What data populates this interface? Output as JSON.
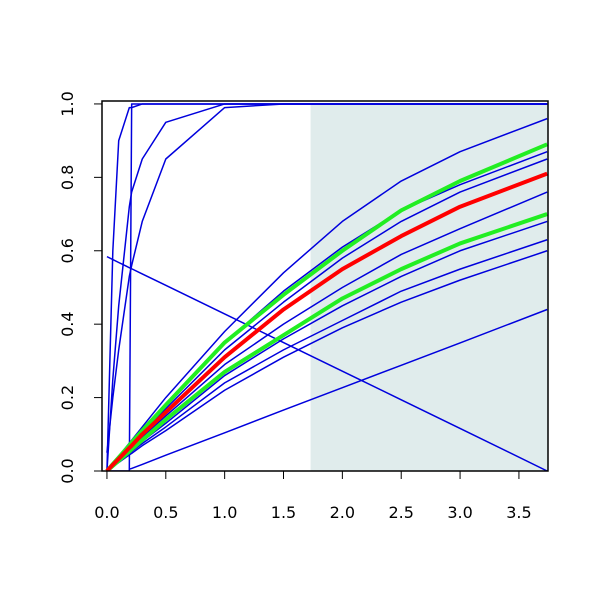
{
  "chart_data": {
    "type": "line",
    "x": [
      0,
      0.05,
      0.1,
      0.19,
      0.21,
      0.3,
      0.5,
      1,
      1.5,
      2,
      2.5,
      3,
      3.74
    ],
    "xlim": [
      -0.042,
      3.747
    ],
    "ylim": [
      0,
      1.008
    ],
    "xticks": [
      {
        "value": 0,
        "label": "0.0"
      },
      0.5,
      {
        "value": 1,
        "label": "1.0"
      },
      1.5,
      {
        "value": 2,
        "label": "2.0"
      },
      2.5,
      {
        "value": 3,
        "label": "3.0"
      },
      3.5
    ],
    "yticks": [
      {
        "value": 0,
        "label": "0.0"
      },
      0.2,
      0.4,
      0.6,
      0.8,
      {
        "value": 1,
        "label": "1.0"
      }
    ],
    "shade": {
      "x": [
        1.73,
        3.747
      ],
      "y": [
        0,
        1
      ],
      "color": "#e0ecec"
    },
    "series": [
      {
        "color": "#0000dd",
        "width": 1.5,
        "values": [
          0,
          0.02,
          0.04,
          0.076,
          0.084,
          0.12,
          0.2,
          0.38,
          0.54,
          0.68,
          0.79,
          0.87,
          0.96
        ]
      },
      {
        "color": "#0000dd",
        "width": 1.5,
        "values": [
          0,
          0.019,
          0.037,
          0.07,
          0.078,
          0.11,
          0.18,
          0.35,
          0.49,
          0.61,
          0.71,
          0.78,
          0.87
        ]
      },
      {
        "color": "#0000dd",
        "width": 1.5,
        "values": [
          0,
          0.018,
          0.035,
          0.067,
          0.074,
          0.105,
          0.17,
          0.33,
          0.46,
          0.58,
          0.68,
          0.76,
          0.85
        ]
      },
      {
        "color": "#0000dd",
        "width": 1.5,
        "values": [
          0,
          0.016,
          0.031,
          0.059,
          0.065,
          0.093,
          0.15,
          0.29,
          0.4,
          0.5,
          0.59,
          0.66,
          0.76
        ]
      },
      {
        "color": "#0000dd",
        "width": 1.5,
        "values": [
          0,
          0.014,
          0.027,
          0.051,
          0.057,
          0.081,
          0.13,
          0.26,
          0.36,
          0.45,
          0.53,
          0.6,
          0.68
        ]
      },
      {
        "color": "#0000dd",
        "width": 1.5,
        "values": [
          0,
          0.013,
          0.025,
          0.048,
          0.053,
          0.075,
          0.12,
          0.24,
          0.33,
          0.41,
          0.49,
          0.55,
          0.63
        ]
      },
      {
        "color": "#0000dd",
        "width": 1.5,
        "values": [
          0,
          0.012,
          0.023,
          0.044,
          0.048,
          0.069,
          0.11,
          0.22,
          0.31,
          0.39,
          0.46,
          0.52,
          0.6
        ]
      },
      {
        "color": "#0000dd",
        "width": 1.5,
        "values": [
          0,
          0.6,
          0.9,
          0.99,
          0.99,
          1,
          1,
          1,
          1,
          1,
          1,
          1,
          1
        ]
      },
      {
        "color": "#0000dd",
        "width": 1.5,
        "values": [
          0,
          0.25,
          0.45,
          0.72,
          0.76,
          0.85,
          0.95,
          1,
          1,
          1,
          1,
          1,
          1
        ]
      },
      {
        "color": "#0000dd",
        "width": 1.5,
        "values": [
          0.05,
          0.2,
          0.33,
          0.53,
          0.56,
          0.68,
          0.85,
          0.99,
          1,
          1,
          1,
          1,
          1
        ]
      },
      {
        "color": "#0000dd",
        "width": 1.5,
        "values": [
          0,
          0,
          0,
          0,
          1,
          1,
          1,
          1,
          1,
          1,
          1,
          1,
          1
        ]
      },
      {
        "color": "#0000dd",
        "width": 1.5,
        "values": [
          0.584,
          0.576,
          0.568,
          0.554,
          0.551,
          0.537,
          0.506,
          0.428,
          0.35,
          0.272,
          0.194,
          0.116,
          0
        ]
      },
      {
        "color": "#0000dd",
        "width": 1.5,
        "values": [
          null,
          null,
          null,
          0.005,
          0.007,
          0.018,
          0.043,
          0.104,
          0.166,
          0.227,
          0.288,
          0.349,
          0.44
        ]
      },
      {
        "color": "#22ee22",
        "width": 4,
        "values": [
          0,
          0.019,
          0.037,
          0.07,
          0.078,
          0.11,
          0.18,
          0.35,
          0.48,
          0.6,
          0.71,
          0.79,
          0.89
        ]
      },
      {
        "color": "#22ee22",
        "width": 4,
        "values": [
          0,
          0.014,
          0.028,
          0.053,
          0.059,
          0.084,
          0.14,
          0.27,
          0.37,
          0.47,
          0.55,
          0.62,
          0.7
        ]
      },
      {
        "color": "#ff0000",
        "width": 4,
        "values": [
          0,
          0.017,
          0.033,
          0.063,
          0.069,
          0.1,
          0.16,
          0.31,
          0.44,
          0.55,
          0.64,
          0.72,
          0.81
        ]
      }
    ]
  }
}
